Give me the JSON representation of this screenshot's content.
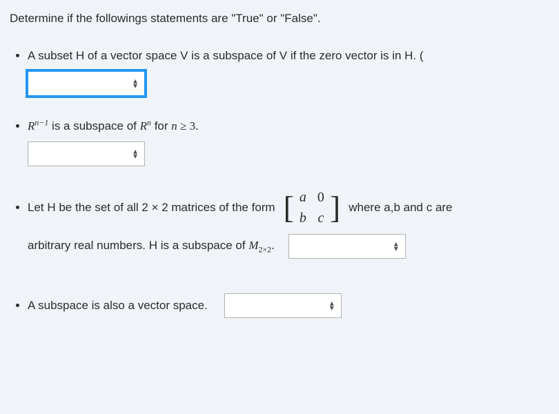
{
  "prompt": "Determine if the followings statements are \"True\" or \"False\".",
  "q1": {
    "text": "A subset H of a vector space V is a subspace of V if the zero vector is in H. ("
  },
  "q2": {
    "pre": "R",
    "sup": "n−1",
    "mid": " is a subspace of ",
    "R2": "R",
    "sup2": "n",
    "post": " for ",
    "nvar": "n",
    "geq": " ≥ 3."
  },
  "q3": {
    "lead": "Let H be the set of all 2 × 2  matrices of the form",
    "matrix": {
      "a": "a",
      "z": "0",
      "b": "b",
      "c": "c"
    },
    "tail": "where a,b and c are",
    "line2a": "arbitrary real numbers. H is a subspace of ",
    "Msym": "M",
    "Msub": "2×2",
    "dot": "."
  },
  "q4": {
    "text": "A subspace is also a vector space."
  },
  "colors": {
    "background": "#f0f4f8",
    "text": "#2a2a2a",
    "focus": "#2196f3",
    "select_bg": "#ffffff",
    "select_border": "#b0b0b0"
  }
}
